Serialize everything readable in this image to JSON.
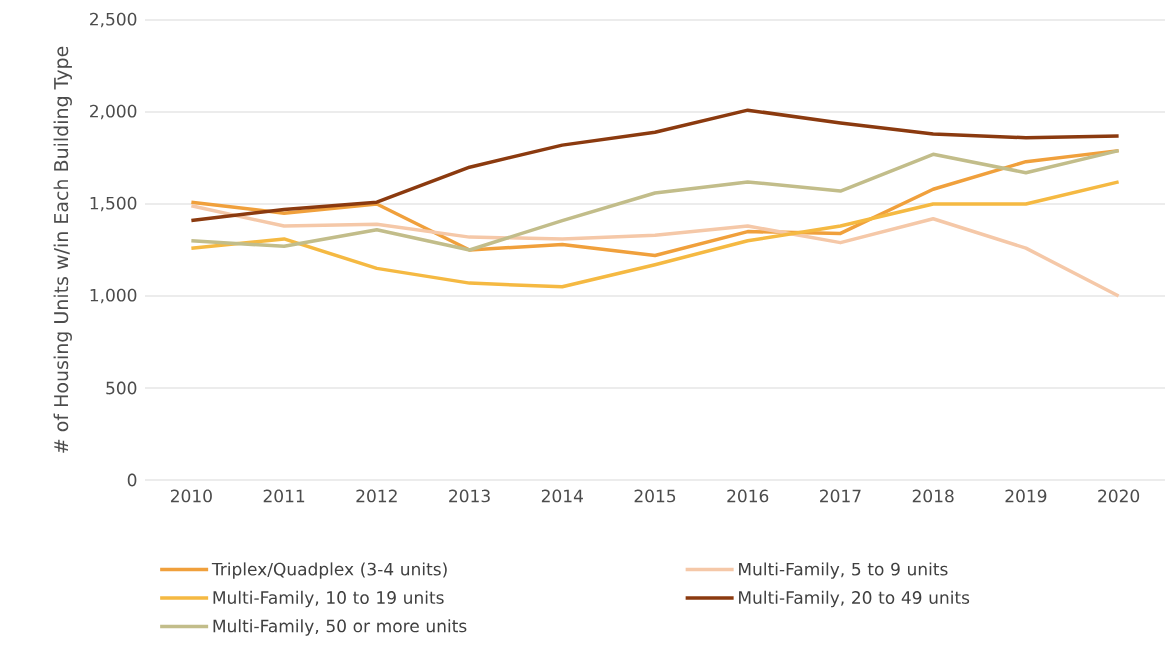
{
  "chart_data": {
    "type": "line",
    "ylabel": "# of Housing Units w/in Each Building Type",
    "categories": [
      "2010",
      "2011",
      "2012",
      "2013",
      "2014",
      "2015",
      "2016",
      "2017",
      "2018",
      "2019",
      "2020"
    ],
    "ylim": [
      0,
      2500
    ],
    "yticks": [
      0,
      500,
      {
        "value": 1000,
        "label": "1,000"
      },
      {
        "value": 1500,
        "label": "1,500"
      },
      {
        "value": 2000,
        "label": "2,000"
      },
      {
        "value": 2500,
        "label": "2,500"
      }
    ],
    "grid": "y",
    "legend": "bottom",
    "series": [
      {
        "name": "Triplex/Quadplex (3-4 units)",
        "color": "#f0a03c",
        "values": [
          1510,
          1450,
          1500,
          1250,
          1280,
          1220,
          1350,
          1340,
          1580,
          1730,
          1790
        ]
      },
      {
        "name": "Multi-Family, 5 to 9 units",
        "color": "#f5c8a8",
        "values": [
          1490,
          1380,
          1390,
          1320,
          1310,
          1330,
          1380,
          1290,
          1420,
          1260,
          1000
        ]
      },
      {
        "name": "Multi-Family, 10 to 19 units",
        "color": "#f5b942",
        "values": [
          1260,
          1310,
          1150,
          1070,
          1050,
          1170,
          1300,
          1380,
          1500,
          1500,
          1620
        ]
      },
      {
        "name": "Multi-Family, 20 to 49 units",
        "color": "#8b3a0f",
        "values": [
          1410,
          1470,
          1510,
          1700,
          1820,
          1890,
          2010,
          1940,
          1880,
          1860,
          1870
        ]
      },
      {
        "name": "Multi-Family, 50 or more units",
        "color": "#c2bd8a",
        "values": [
          1300,
          1270,
          1360,
          1250,
          1410,
          1560,
          1620,
          1570,
          1770,
          1670,
          1790
        ]
      }
    ]
  }
}
